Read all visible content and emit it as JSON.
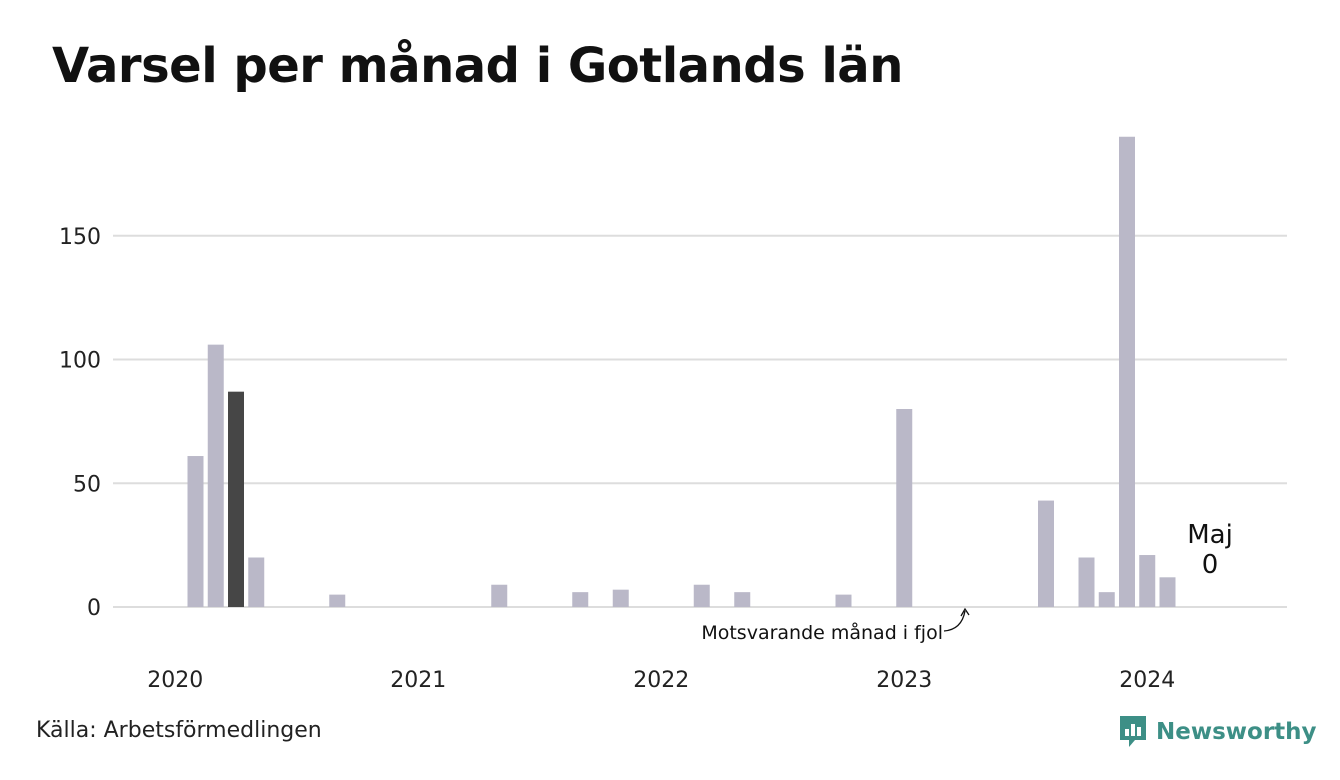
{
  "title": "Varsel per månad i Gotlands län",
  "source": "Källa: Arbetsförmedlingen",
  "brand": {
    "name": "Newsworthy",
    "logo_icon": "newsworthy-chart-icon",
    "color": "#3d8f86"
  },
  "chart_data": {
    "type": "bar",
    "title": "Varsel per månad i Gotlands län",
    "xlabel": "",
    "ylabel": "",
    "ylim": [
      0,
      190
    ],
    "yticks": [
      0,
      50,
      100,
      150
    ],
    "xtick_labels": [
      "2020",
      "2021",
      "2022",
      "2023",
      "2024"
    ],
    "x_start": "2020-01",
    "x_end": "2024-12",
    "grid": true,
    "colors": {
      "default": "#bab8c8",
      "highlight": "#464646",
      "grid": "#dddddd"
    },
    "highlight_month": "2020-05",
    "points": [
      {
        "month": "2020-03",
        "value": 61
      },
      {
        "month": "2020-04",
        "value": 106
      },
      {
        "month": "2020-05",
        "value": 87
      },
      {
        "month": "2020-06",
        "value": 20
      },
      {
        "month": "2020-10",
        "value": 5
      },
      {
        "month": "2021-06",
        "value": 9
      },
      {
        "month": "2021-10",
        "value": 6
      },
      {
        "month": "2021-12",
        "value": 7
      },
      {
        "month": "2022-04",
        "value": 9
      },
      {
        "month": "2022-06",
        "value": 6
      },
      {
        "month": "2022-11",
        "value": 5
      },
      {
        "month": "2023-02",
        "value": 80
      },
      {
        "month": "2023-09",
        "value": 43
      },
      {
        "month": "2023-11",
        "value": 20
      },
      {
        "month": "2023-12",
        "value": 6
      },
      {
        "month": "2024-01",
        "value": 190
      },
      {
        "month": "2024-02",
        "value": 21
      },
      {
        "month": "2024-03",
        "value": 12
      }
    ],
    "annotations": [
      {
        "text": "Motsvarande månad i fjol",
        "month": "2023-05",
        "value": 0
      }
    ],
    "callout": {
      "label": "Maj",
      "value": "0",
      "month": "2024-05"
    }
  }
}
